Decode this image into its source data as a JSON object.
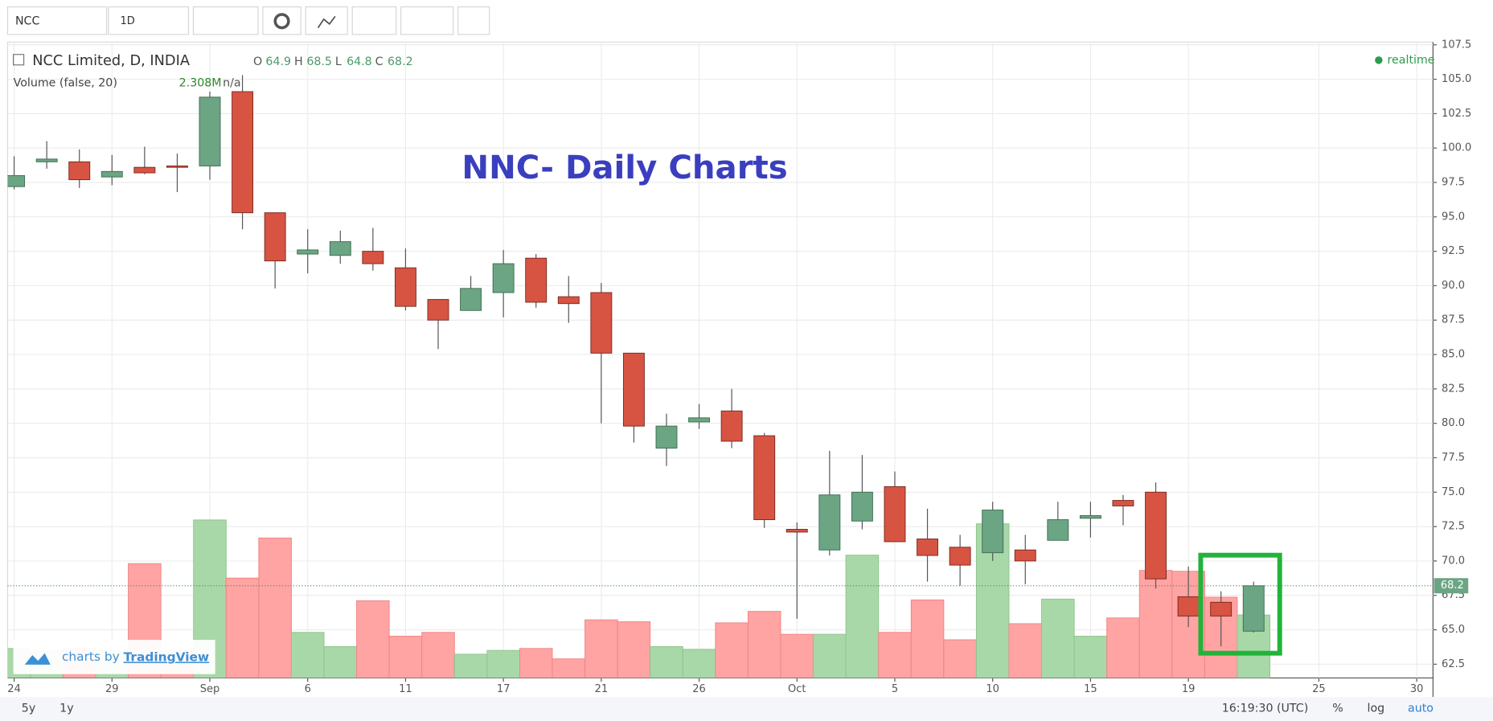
{
  "toolbar": {
    "symbol": "NCC",
    "interval": "1D"
  },
  "legend": {
    "title": "NCC Limited, D, INDIA",
    "open_label": "O",
    "open": 64.9,
    "high_label": "H",
    "high": 68.5,
    "low_label": "L",
    "low": 64.8,
    "close_label": "C",
    "close": 68.2,
    "volume_title": "Volume (false, 20)",
    "volume_value": "2.308M",
    "volume_ma": "n/a",
    "status": "realtime"
  },
  "chart_data": {
    "type": "candlestick",
    "annotation": "NNC- Daily Charts",
    "x": [
      0,
      1,
      2,
      3,
      4,
      5,
      6,
      7,
      8,
      9,
      10,
      11,
      12,
      13,
      14,
      15,
      16,
      17,
      18,
      19,
      20,
      21,
      22,
      23,
      24,
      25,
      26,
      27,
      28,
      29,
      30,
      31,
      32,
      33,
      34,
      35,
      36,
      37,
      38
    ],
    "open": [
      97.2,
      99.0,
      99.0,
      97.9,
      98.6,
      98.7,
      98.7,
      104.1,
      95.3,
      92.3,
      92.2,
      92.5,
      91.3,
      89.0,
      88.2,
      89.5,
      92.0,
      89.2,
      89.5,
      85.1,
      78.2,
      80.1,
      80.9,
      79.1,
      72.3,
      70.8,
      72.9,
      75.4,
      71.6,
      71.0,
      70.6,
      70.8,
      71.5,
      73.1,
      74.4,
      75.0,
      67.4,
      67.0,
      64.9
    ],
    "high": [
      99.4,
      100.5,
      99.9,
      99.5,
      100.1,
      99.6,
      104.1,
      105.3,
      95.3,
      94.1,
      94.0,
      94.2,
      92.7,
      89.0,
      90.7,
      92.6,
      92.3,
      90.7,
      90.2,
      85.1,
      80.7,
      81.4,
      82.5,
      79.3,
      72.8,
      78.0,
      77.7,
      76.5,
      73.8,
      71.9,
      74.3,
      71.9,
      74.3,
      74.3,
      74.8,
      75.7,
      69.6,
      67.8,
      68.5
    ],
    "low": [
      97.0,
      98.5,
      97.1,
      97.3,
      98.1,
      96.8,
      97.7,
      94.1,
      89.8,
      90.9,
      91.6,
      91.1,
      88.2,
      85.4,
      88.2,
      87.7,
      88.4,
      87.3,
      80.0,
      78.6,
      76.9,
      79.6,
      78.2,
      72.4,
      65.8,
      70.4,
      72.3,
      71.4,
      68.5,
      68.2,
      70.0,
      68.3,
      71.5,
      71.7,
      72.6,
      68.0,
      65.2,
      63.8,
      64.8
    ],
    "close": [
      98.0,
      99.2,
      97.7,
      98.3,
      98.2,
      98.6,
      103.7,
      95.3,
      91.8,
      92.6,
      93.2,
      91.6,
      88.5,
      87.5,
      89.8,
      91.6,
      88.8,
      88.7,
      85.1,
      79.8,
      79.8,
      80.4,
      78.7,
      73.0,
      72.1,
      74.8,
      75.0,
      71.4,
      70.4,
      69.7,
      73.7,
      70.0,
      73.0,
      73.3,
      74.0,
      68.7,
      66.0,
      66.0,
      68.2
    ],
    "volume": [
      1.08,
      1.0,
      1.1,
      1.0,
      4.19,
      1.0,
      5.79,
      3.66,
      5.13,
      1.67,
      1.15,
      2.83,
      1.53,
      1.67,
      0.87,
      1.01,
      1.08,
      0.7,
      2.13,
      2.06,
      1.15,
      1.05,
      2.02,
      2.44,
      1.6,
      1.6,
      4.5,
      1.67,
      2.86,
      1.4,
      5.65,
      1.99,
      2.89,
      1.53,
      2.2,
      3.94,
      3.91,
      2.96,
      2.308
    ],
    "up_color": "#6ba583",
    "down_color": "#d75442",
    "volume_up_color": "#a9d8a8",
    "volume_down_color": "#ffa3a3",
    "xlim": [
      -0.2,
      43.5
    ],
    "xticks": [
      {
        "value": 0,
        "label": "24"
      },
      {
        "value": 3,
        "label": "29"
      },
      {
        "value": 6,
        "label": "Sep"
      },
      {
        "value": 9,
        "label": "6"
      },
      {
        "value": 12,
        "label": "11"
      },
      {
        "value": 15,
        "label": "17"
      },
      {
        "value": 18,
        "label": "21"
      },
      {
        "value": 21,
        "label": "26"
      },
      {
        "value": 24,
        "label": "Oct"
      },
      {
        "value": 27,
        "label": "5"
      },
      {
        "value": 30,
        "label": "10"
      },
      {
        "value": 33,
        "label": "15"
      },
      {
        "value": 36,
        "label": "19"
      },
      {
        "value": 40,
        "label": "25"
      },
      {
        "value": 43,
        "label": "30"
      }
    ],
    "ylim": [
      61.5,
      107.7
    ],
    "yticks": [
      {
        "value": 62.5,
        "label": "62.5"
      },
      {
        "value": 65,
        "label": "65.0"
      },
      {
        "value": 67.5,
        "label": "67.5"
      },
      {
        "value": 70,
        "label": "70.0"
      },
      {
        "value": 72.5,
        "label": "72.5"
      },
      {
        "value": 75,
        "label": "75.0"
      },
      {
        "value": 77.5,
        "label": "77.5"
      },
      {
        "value": 80,
        "label": "80.0"
      },
      {
        "value": 82.5,
        "label": "82.5"
      },
      {
        "value": 85,
        "label": "85.0"
      },
      {
        "value": 87.5,
        "label": "87.5"
      },
      {
        "value": 90,
        "label": "90.0"
      },
      {
        "value": 92.5,
        "label": "92.5"
      },
      {
        "value": 95,
        "label": "95.0"
      },
      {
        "value": 97.5,
        "label": "97.5"
      },
      {
        "value": 100,
        "label": "100.0"
      },
      {
        "value": 102.5,
        "label": "102.5"
      },
      {
        "value": 105,
        "label": "105.0"
      },
      {
        "value": 107.5,
        "label": "107.5"
      }
    ],
    "y2lim": [
      0,
      6
    ],
    "grid": true,
    "last_price": 68.2
  },
  "footer": {
    "ranges": [
      "5y",
      "1y"
    ],
    "time": "16:19:30 (UTC)",
    "options": [
      "%",
      "log",
      "auto"
    ]
  }
}
